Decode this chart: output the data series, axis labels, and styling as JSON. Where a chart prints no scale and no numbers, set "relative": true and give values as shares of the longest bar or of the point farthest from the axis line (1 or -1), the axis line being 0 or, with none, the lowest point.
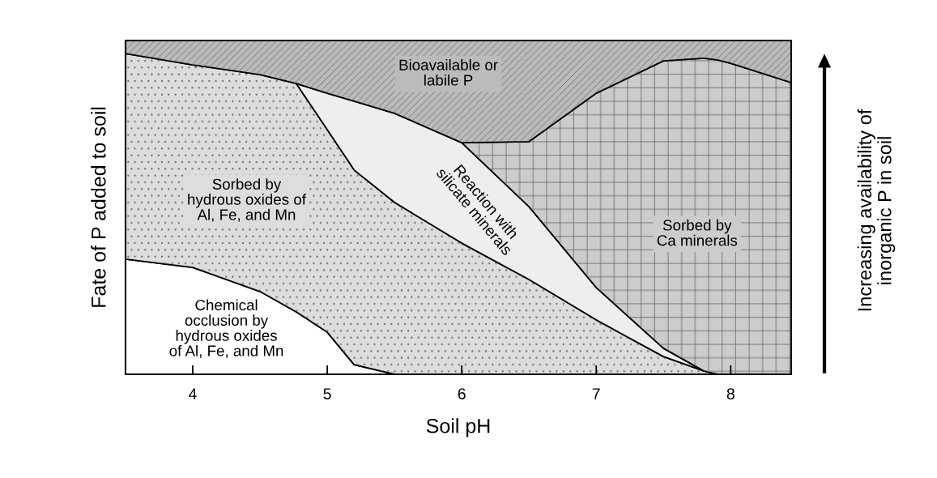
{
  "chart_data": {
    "type": "area",
    "stacked": true,
    "relative": true,
    "xlabel": "Soil pH",
    "ylabel": "Fate of P added to soil",
    "x": [
      3.5,
      4.0,
      4.5,
      4.77,
      5.0,
      5.2,
      5.5,
      6.0,
      6.5,
      7.0,
      7.5,
      7.8,
      7.9,
      8.0,
      8.45
    ],
    "xlim": [
      3.5,
      8.45
    ],
    "xticks": [
      4,
      5,
      6,
      7,
      8
    ],
    "tick_labels": "x",
    "grid": false,
    "legend": false,
    "series": [
      {
        "name": "Chemical\nocclusion by\nhydrous oxides\nof Al, Fe, and Mn",
        "color": "#ffffff",
        "values": [
          0.345,
          0.32,
          0.248,
          0.187,
          0.126,
          0.029,
          0,
          null,
          null,
          null,
          null,
          null,
          null,
          null,
          null
        ]
      },
      {
        "name": "Sorbed by\nhydrous oxides of\nAl, Fe, and Mn",
        "color": "#dddddd",
        "values": [
          0.616,
          0.607,
          0.65,
          0.684,
          0.607,
          0.583,
          0.515,
          0.393,
          0.284,
          0.163,
          0.053,
          0.01,
          0,
          null,
          null
        ]
      },
      {
        "name": "Reaction with\nsilicate minerals",
        "color": "#eeeeee",
        "values": [
          null,
          null,
          null,
          0,
          0.109,
          0.206,
          0.267,
          0.301,
          0.218,
          0.097,
          0.025,
          0,
          null,
          null,
          null
        ]
      },
      {
        "name": "Sorbed by\nCa minerals",
        "color": "#cccccc",
        "values": [
          null,
          null,
          null,
          null,
          null,
          null,
          null,
          0,
          0.195,
          0.582,
          0.861,
          0.937,
          0.942,
          0.932,
          0.874
        ]
      },
      {
        "name": "Bioavailable or\nlabile P",
        "color": "#bbbbbb",
        "values": [
          0.039,
          0.073,
          0.102,
          0.129,
          0.158,
          0.182,
          0.218,
          0.306,
          0.303,
          0.158,
          0.061,
          0.053,
          0.058,
          0.068,
          0.126
        ]
      }
    ],
    "annotations": [
      "Increasing availability of\ninorganic P in soil"
    ]
  }
}
